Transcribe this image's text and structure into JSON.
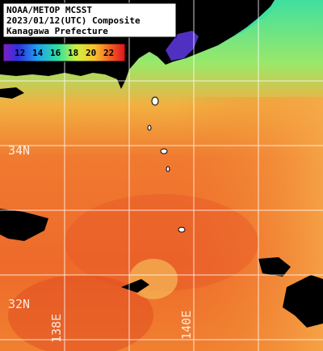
{
  "header": {
    "lines": [
      "NOAA/METOP MCSST",
      "2023/01/12(UTC) Composite",
      "Kanagawa Prefecture"
    ]
  },
  "legend": {
    "labels": [
      12,
      14,
      16,
      18,
      20,
      22
    ]
  },
  "grid_labels": {
    "latitudes": [
      "34N",
      "32N"
    ],
    "longitudes": [
      "138E",
      "140E"
    ]
  }
}
